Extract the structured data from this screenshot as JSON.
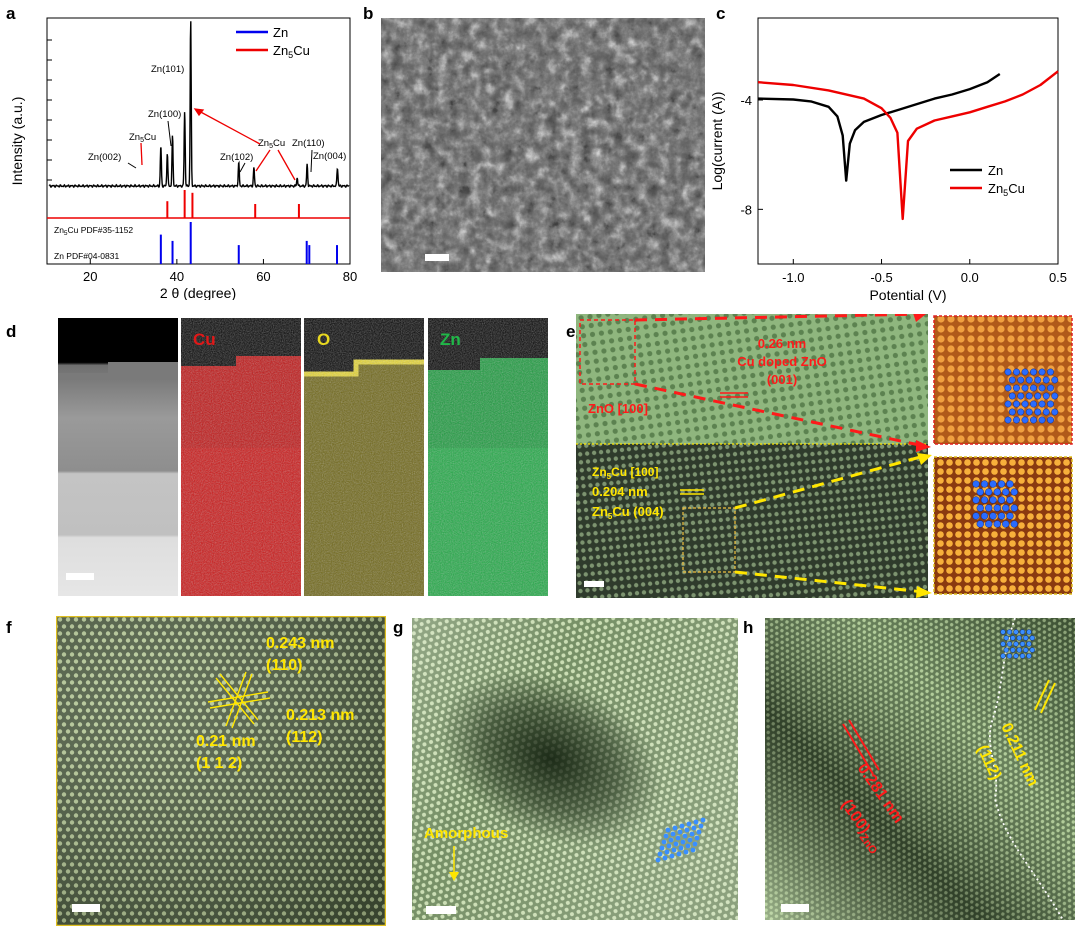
{
  "panels": {
    "a": "a",
    "b": "b",
    "c": "c",
    "d": "d",
    "e": "e",
    "f": "f",
    "g": "g",
    "h": "h"
  },
  "chart_data": [
    {
      "type": "line",
      "panel": "a",
      "title": "",
      "xlabel": "2 θ (degree)",
      "ylabel": "Intensity (a.u.)",
      "xlim": [
        10,
        80
      ],
      "xticks": [
        "20",
        "40",
        "60",
        "80"
      ],
      "legend": [
        {
          "name": "Zn",
          "color": "#0000ee"
        },
        {
          "name": "Zn5Cu",
          "color": "#ee0000"
        }
      ],
      "series": [
        {
          "name": "XRD pattern",
          "color": "#000000",
          "peaks": [
            {
              "x": 36.3,
              "h": 0.24,
              "label": "Zn(002)"
            },
            {
              "x": 37.8,
              "h": 0.2,
              "label": "Zn5Cu"
            },
            {
              "x": 39.0,
              "h": 0.3,
              "label": "Zn(100)"
            },
            {
              "x": 41.8,
              "h": 0.45,
              "label": "Zn5Cu"
            },
            {
              "x": 43.2,
              "h": 1.0,
              "label": "Zn(101)"
            },
            {
              "x": 54.3,
              "h": 0.14,
              "label": "Zn(102)"
            },
            {
              "x": 57.8,
              "h": 0.11,
              "label": "Zn5Cu"
            },
            {
              "x": 67.8,
              "h": 0.05,
              "label": ""
            },
            {
              "x": 70.1,
              "h": 0.13,
              "label": "Zn(110)"
            },
            {
              "x": 77.1,
              "h": 0.11,
              "label": "Zn(004)"
            }
          ]
        },
        {
          "name": "Zn5Cu PDF#35-1152",
          "color": "#ee0000",
          "lines": [
            {
              "x": 37.8,
              "h": 0.6
            },
            {
              "x": 41.8,
              "h": 1.0
            },
            {
              "x": 43.6,
              "h": 0.9
            },
            {
              "x": 58.1,
              "h": 0.5
            },
            {
              "x": 68.2,
              "h": 0.5
            }
          ]
        },
        {
          "name": "Zn PDF#04-0831",
          "color": "#0000ee",
          "lines": [
            {
              "x": 36.3,
              "h": 0.7
            },
            {
              "x": 39.0,
              "h": 0.55
            },
            {
              "x": 43.2,
              "h": 1.0
            },
            {
              "x": 54.3,
              "h": 0.45
            },
            {
              "x": 70.0,
              "h": 0.55
            },
            {
              "x": 70.6,
              "h": 0.45
            },
            {
              "x": 77.0,
              "h": 0.45
            }
          ]
        }
      ],
      "reference_labels": [
        "Zn5Cu PDF#35-1152",
        "Zn PDF#04-0831"
      ]
    },
    {
      "type": "line",
      "panel": "c",
      "title": "",
      "xlabel": "Potential (V)",
      "ylabel": "Log(current (A))",
      "xlim": [
        -1.2,
        0.5
      ],
      "ylim": [
        -10,
        -1
      ],
      "xticks": [
        -1.0,
        -0.5,
        0.0,
        0.5
      ],
      "yticks": [
        -4,
        -8
      ],
      "xtick_labels": [
        "-1.0",
        "-0.5",
        "0.0",
        "0.5"
      ],
      "ytick_labels": [
        "-4",
        "-8"
      ],
      "legend": [
        {
          "name": "Zn",
          "color": "#000000"
        },
        {
          "name": "Zn5Cu",
          "color": "#ee0000"
        }
      ],
      "series": [
        {
          "name": "Zn",
          "color": "#000000",
          "points": [
            [
              -1.2,
              -3.95
            ],
            [
              -1.0,
              -3.98
            ],
            [
              -0.9,
              -4.05
            ],
            [
              -0.8,
              -4.25
            ],
            [
              -0.75,
              -4.6
            ],
            [
              -0.72,
              -5.3
            ],
            [
              -0.7,
              -6.95
            ],
            [
              -0.68,
              -5.6
            ],
            [
              -0.65,
              -5.1
            ],
            [
              -0.6,
              -4.8
            ],
            [
              -0.5,
              -4.55
            ],
            [
              -0.4,
              -4.35
            ],
            [
              -0.3,
              -4.15
            ],
            [
              -0.2,
              -3.95
            ],
            [
              -0.1,
              -3.8
            ],
            [
              0.0,
              -3.6
            ],
            [
              0.1,
              -3.35
            ],
            [
              0.17,
              -3.05
            ]
          ]
        },
        {
          "name": "Zn5Cu",
          "color": "#ee0000",
          "points": [
            [
              -1.2,
              -3.35
            ],
            [
              -1.0,
              -3.45
            ],
            [
              -0.8,
              -3.65
            ],
            [
              -0.6,
              -3.95
            ],
            [
              -0.5,
              -4.3
            ],
            [
              -0.45,
              -4.65
            ],
            [
              -0.41,
              -5.2
            ],
            [
              -0.38,
              -8.35
            ],
            [
              -0.35,
              -5.5
            ],
            [
              -0.3,
              -5.05
            ],
            [
              -0.2,
              -4.75
            ],
            [
              -0.1,
              -4.6
            ],
            [
              0.0,
              -4.45
            ],
            [
              0.1,
              -4.25
            ],
            [
              0.2,
              -4.05
            ],
            [
              0.3,
              -3.8
            ],
            [
              0.4,
              -3.45
            ],
            [
              0.5,
              -2.95
            ]
          ]
        }
      ]
    }
  ],
  "panel_a": {
    "ylabel": "Intensity (a.u.)",
    "xlabel": "2 θ (degree)",
    "legend_zn": "Zn",
    "legend_zn5cu": "Zn",
    "legend_zn5cu_sub": "5",
    "legend_zn5cu_tail": "Cu",
    "peak_labels": [
      "Zn(002)",
      "Zn(100)",
      "Zn(101)",
      "Zn(102)",
      "Zn(110)",
      "Zn(004)"
    ],
    "zn5cu_label_1_main": "Zn",
    "zn5cu_label_1_sub": "5",
    "zn5cu_label_1_tail": "Cu",
    "zn5cu_label_2_main": "Zn",
    "zn5cu_label_2_sub": "5",
    "zn5cu_label_2_tail": "Cu",
    "ref1_main": "Zn",
    "ref1_sub": "5",
    "ref1_tail": "Cu PDF#35-1152",
    "ref2": "Zn PDF#04-0831"
  },
  "panel_c": {
    "ylabel": "Log(current (A))",
    "xlabel": "Potential (V)",
    "legend_zn": "Zn",
    "legend_zn5cu_main": "Zn",
    "legend_zn5cu_sub": "5",
    "legend_zn5cu_tail": "Cu"
  },
  "panel_d": {
    "cu": "Cu",
    "o": "O",
    "zn": "Zn"
  },
  "panel_e": {
    "spacing1": "0.26 nm",
    "phase1": "Cu doped ZnO",
    "plane1": "(001)",
    "zone1": "ZnO [100]",
    "zone2_main": "Zn",
    "zone2_sub": "5",
    "zone2_tail": "Cu [100]",
    "spacing2": "0.204 nm",
    "plane2_main": "Zn",
    "plane2_sub": "5",
    "plane2_tail": "Cu (004)"
  },
  "panel_f": {
    "d1": "0.243 nm",
    "p1": "(110)",
    "d2": "0.213 nm",
    "p2": "(112)",
    "d3": "0.21 nm",
    "p3": "(1 1 2)"
  },
  "panel_g": {
    "amorphous": "Amorphous"
  },
  "panel_h": {
    "d1": "0.281 nm",
    "p1": "(100)",
    "p1_sub": "ZnO",
    "d2": "0.211 nm",
    "p2": "(112)"
  },
  "colors": {
    "zn_blue": "#0000ee",
    "zn5cu_red": "#ee0000",
    "cu_map": "#d01010",
    "o_map": "#d8c820",
    "zn_map": "#20b040",
    "annotation_yellow": "#ffe600",
    "annotation_red": "#ff1a1a",
    "atom_blue": "#2a6cff"
  }
}
